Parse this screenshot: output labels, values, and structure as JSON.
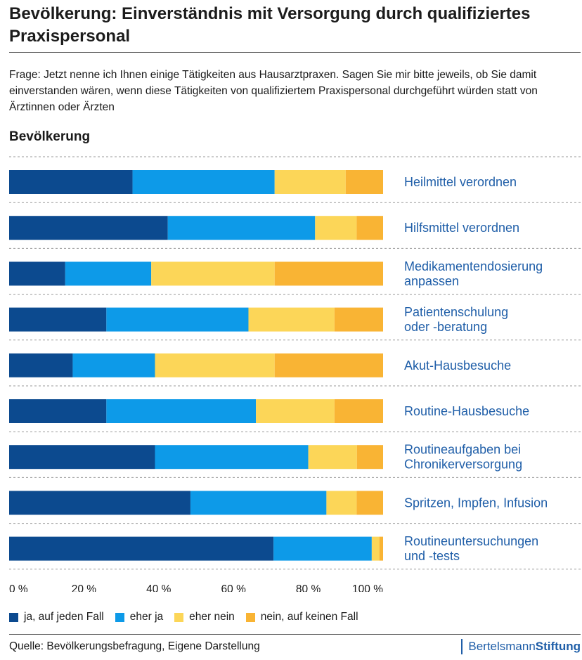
{
  "title": "Bevölkerung: Einverständnis mit Versorgung durch qualifiziertes Praxispersonal",
  "question": "Frage: Jetzt nenne ich Ihnen einige Tätigkeiten aus Hausarztpraxen. Sagen Sie mir bitte jeweils, ob Sie damit einverstanden wären, wenn diese Tätigkeiten von qualifiziertem Praxispersonal durchgeführt würden statt von Ärztinnen oder Ärzten",
  "subtitle": "Bevölkerung",
  "source": "Quelle: Bevölkerungsbefragung, Eigene Darstellung",
  "brand": {
    "part1": "Bertelsmann",
    "part2": "Stiftung"
  },
  "colors": {
    "ja": "#0c4a8f",
    "eher_ja": "#0d9ae8",
    "eher_nein": "#fcd658",
    "nein": "#f9b434",
    "label": "#1f5ea8",
    "gridline": "#9a9a9a"
  },
  "chart_data": {
    "type": "bar",
    "orientation": "horizontal",
    "stacked": true,
    "xlim": [
      0,
      100
    ],
    "xticks": [
      "0 %",
      "20 %",
      "40 %",
      "60 %",
      "80 %",
      "100 %"
    ],
    "categories": [
      "Heilmittel verordnen",
      "Hilfsmittel verordnen",
      "Medikamentendosierung anpassen",
      "Patientenschulung oder -beratung",
      "Akut-Hausbesuche",
      "Routine-Hausbesuche",
      "Routineaufgaben bei Chronikerversorgung",
      "Spritzen, Impfen, Infusion",
      "Routineuntersuchungen und -tests"
    ],
    "category_lines": [
      [
        "Heilmittel verordnen"
      ],
      [
        "Hilfsmittel verordnen"
      ],
      [
        "Medikamentendosierung",
        "anpassen"
      ],
      [
        "Patientenschulung",
        "oder -beratung"
      ],
      [
        "Akut-Hausbesuche"
      ],
      [
        "Routine-Hausbesuche"
      ],
      [
        "Routineaufgaben bei",
        "Chronikerversorgung"
      ],
      [
        "Spritzen, Impfen, Infusion"
      ],
      [
        "Routineuntersuchungen",
        "und -tests"
      ]
    ],
    "series": [
      {
        "name": "ja, auf jeden Fall",
        "color_key": "ja",
        "values": [
          33,
          42,
          15,
          26,
          17,
          26,
          39,
          48,
          70
        ]
      },
      {
        "name": "eher ja",
        "color_key": "eher_ja",
        "values": [
          38,
          39,
          23,
          38,
          22,
          40,
          41,
          36,
          26
        ]
      },
      {
        "name": "eher nein",
        "color_key": "eher_nein",
        "values": [
          19,
          11,
          33,
          23,
          32,
          21,
          13,
          8,
          2
        ]
      },
      {
        "name": "nein, auf keinen Fall",
        "color_key": "nein",
        "values": [
          10,
          7,
          29,
          13,
          29,
          13,
          7,
          7,
          1
        ]
      }
    ]
  }
}
